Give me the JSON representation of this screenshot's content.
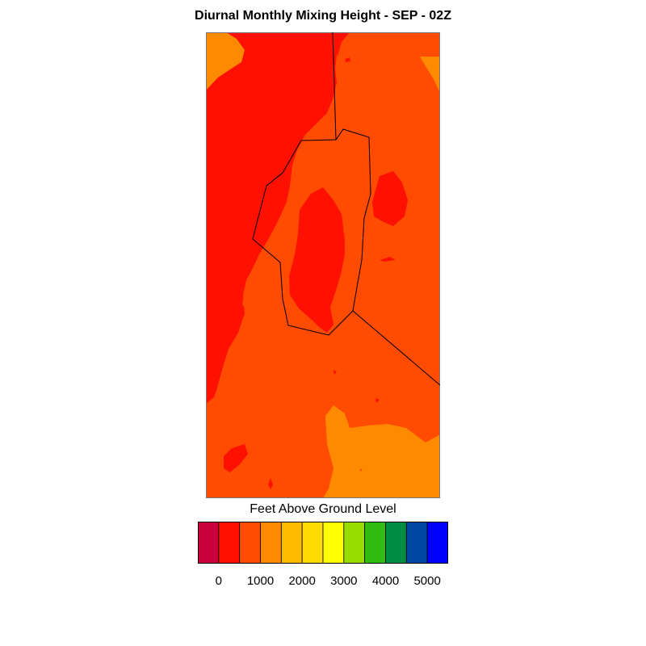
{
  "title": "Diurnal Monthly Mixing Height - SEP - 02Z",
  "map": {
    "colors": {
      "red": "#ff1000",
      "red_orange": "#ff4c00",
      "orange": "#ff8a00"
    },
    "outline_color": "#000000"
  },
  "legend": {
    "title": "Feet Above Ground Level",
    "colors": [
      "#c8003c",
      "#ff1000",
      "#ff4c00",
      "#ff8a00",
      "#ffbb00",
      "#ffdc00",
      "#ffff00",
      "#99dd00",
      "#2fbd12",
      "#008c43",
      "#0047a5",
      "#0000ff"
    ],
    "tick_labels": [
      "0",
      "1000",
      "2000",
      "3000",
      "4000",
      "5000"
    ]
  }
}
